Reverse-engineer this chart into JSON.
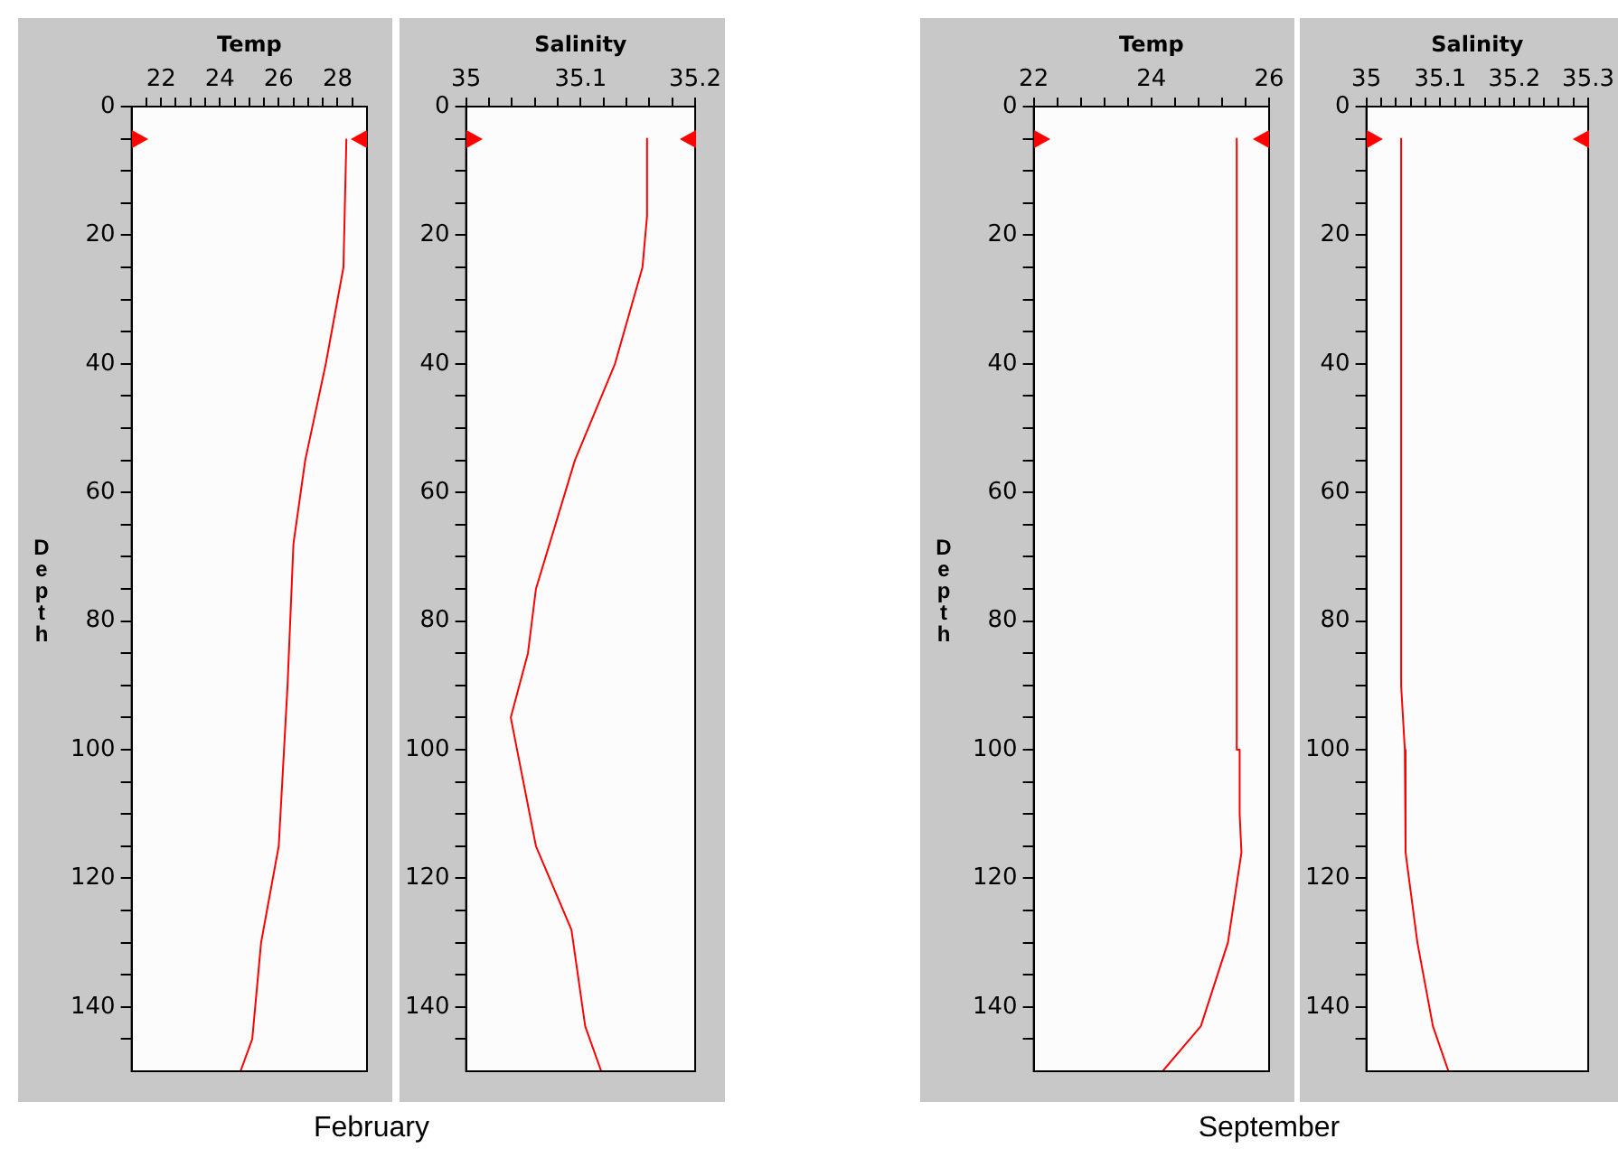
{
  "chart_data": [
    {
      "type": "line",
      "xlabel": "Temp",
      "ylabel": "Depth",
      "color": "#ff0000",
      "annotations": [
        "February"
      ],
      "x": [
        28.3,
        28.2,
        27.6,
        26.9,
        26.5,
        26.3,
        26.0,
        25.4,
        25.1,
        24.7
      ],
      "values": [
        5,
        25,
        40,
        55,
        68,
        90,
        115,
        130,
        145,
        150
      ],
      "xlim": [
        21,
        29
      ],
      "xticks": [
        {
          "value": 21.5,
          "label": null
        },
        22,
        {
          "value": 22.5,
          "label": null
        },
        {
          "value": 23,
          "label": null
        },
        {
          "value": 23.5,
          "label": null
        },
        24,
        {
          "value": 24.5,
          "label": null
        },
        {
          "value": 25,
          "label": null
        },
        {
          "value": 25.5,
          "label": null
        },
        26,
        {
          "value": 26.5,
          "label": null
        },
        {
          "value": 27,
          "label": null
        },
        {
          "value": 27.5,
          "label": null
        },
        28,
        {
          "value": 28.5,
          "label": null
        }
      ],
      "ylim": [
        150,
        0
      ],
      "yticks": [
        0,
        {
          "value": 5,
          "label": null
        },
        {
          "value": 10,
          "label": null
        },
        {
          "value": 15,
          "label": null
        },
        20,
        {
          "value": 25,
          "label": null
        },
        {
          "value": 30,
          "label": null
        },
        {
          "value": 35,
          "label": null
        },
        40,
        {
          "value": 45,
          "label": null
        },
        {
          "value": 50,
          "label": null
        },
        {
          "value": 55,
          "label": null
        },
        60,
        {
          "value": 65,
          "label": null
        },
        {
          "value": 70,
          "label": null
        },
        {
          "value": 75,
          "label": null
        },
        80,
        {
          "value": 85,
          "label": null
        },
        {
          "value": 90,
          "label": null
        },
        {
          "value": 95,
          "label": null
        },
        100,
        {
          "value": 105,
          "label": null
        },
        {
          "value": 110,
          "label": null
        },
        {
          "value": 115,
          "label": null
        },
        120,
        {
          "value": 125,
          "label": null
        },
        {
          "value": 130,
          "label": null
        },
        {
          "value": 135,
          "label": null
        },
        140,
        {
          "value": 145,
          "label": null
        }
      ]
    },
    {
      "type": "line",
      "xlabel": "Salinity",
      "color": "#ff0000",
      "x": [
        35.158,
        35.158,
        35.154,
        35.13,
        35.095,
        35.061,
        35.054,
        35.039,
        35.061,
        35.092,
        35.104,
        35.118
      ],
      "values": [
        5,
        17,
        25,
        40,
        55,
        75,
        85,
        95,
        115,
        128,
        143,
        150
      ],
      "xlim": [
        35,
        35.2
      ],
      "xticks": [
        35,
        {
          "value": 35.02,
          "label": null
        },
        {
          "value": 35.04,
          "label": null
        },
        {
          "value": 35.06,
          "label": null
        },
        {
          "value": 35.08,
          "label": null
        },
        35.1,
        {
          "value": 35.12,
          "label": null
        },
        {
          "value": 35.14,
          "label": null
        },
        {
          "value": 35.16,
          "label": null
        },
        {
          "value": 35.18,
          "label": null
        },
        35.2
      ],
      "ylim": [
        150,
        0
      ],
      "yticks": [
        0,
        {
          "value": 5,
          "label": null
        },
        {
          "value": 10,
          "label": null
        },
        {
          "value": 15,
          "label": null
        },
        20,
        {
          "value": 25,
          "label": null
        },
        {
          "value": 30,
          "label": null
        },
        {
          "value": 35,
          "label": null
        },
        40,
        {
          "value": 45,
          "label": null
        },
        {
          "value": 50,
          "label": null
        },
        {
          "value": 55,
          "label": null
        },
        60,
        {
          "value": 65,
          "label": null
        },
        {
          "value": 70,
          "label": null
        },
        {
          "value": 75,
          "label": null
        },
        80,
        {
          "value": 85,
          "label": null
        },
        {
          "value": 90,
          "label": null
        },
        {
          "value": 95,
          "label": null
        },
        100,
        {
          "value": 105,
          "label": null
        },
        {
          "value": 110,
          "label": null
        },
        {
          "value": 115,
          "label": null
        },
        120,
        {
          "value": 125,
          "label": null
        },
        {
          "value": 130,
          "label": null
        },
        {
          "value": 135,
          "label": null
        },
        140,
        {
          "value": 145,
          "label": null
        }
      ]
    },
    {
      "type": "line",
      "xlabel": "Temp",
      "ylabel": "Depth",
      "color": "#ff0000",
      "annotations": [
        "September"
      ],
      "x": [
        25.45,
        25.45,
        25.5,
        25.5,
        25.53,
        25.3,
        24.84,
        24.19
      ],
      "values": [
        5,
        100,
        100,
        110,
        116,
        130,
        143,
        150
      ],
      "xlim": [
        22,
        26
      ],
      "xticks": [
        22,
        {
          "value": 22.4,
          "label": null
        },
        {
          "value": 22.8,
          "label": null
        },
        {
          "value": 23.2,
          "label": null
        },
        {
          "value": 23.6,
          "label": null
        },
        24,
        {
          "value": 24.4,
          "label": null
        },
        {
          "value": 24.8,
          "label": null
        },
        {
          "value": 25.2,
          "label": null
        },
        {
          "value": 25.6,
          "label": null
        },
        26
      ],
      "ylim": [
        150,
        0
      ],
      "yticks": [
        0,
        {
          "value": 5,
          "label": null
        },
        {
          "value": 10,
          "label": null
        },
        {
          "value": 15,
          "label": null
        },
        20,
        {
          "value": 25,
          "label": null
        },
        {
          "value": 30,
          "label": null
        },
        {
          "value": 35,
          "label": null
        },
        40,
        {
          "value": 45,
          "label": null
        },
        {
          "value": 50,
          "label": null
        },
        {
          "value": 55,
          "label": null
        },
        60,
        {
          "value": 65,
          "label": null
        },
        {
          "value": 70,
          "label": null
        },
        {
          "value": 75,
          "label": null
        },
        80,
        {
          "value": 85,
          "label": null
        },
        {
          "value": 90,
          "label": null
        },
        {
          "value": 95,
          "label": null
        },
        100,
        {
          "value": 105,
          "label": null
        },
        {
          "value": 110,
          "label": null
        },
        {
          "value": 115,
          "label": null
        },
        120,
        {
          "value": 125,
          "label": null
        },
        {
          "value": 130,
          "label": null
        },
        {
          "value": 135,
          "label": null
        },
        140,
        {
          "value": 145,
          "label": null
        }
      ]
    },
    {
      "type": "line",
      "xlabel": "Salinity",
      "color": "#ff0000",
      "x": [
        35.047,
        35.047,
        35.052,
        35.053,
        35.069,
        35.09,
        35.111
      ],
      "values": [
        5,
        90,
        100,
        116,
        130,
        143,
        150
      ],
      "xlim": [
        35,
        35.3
      ],
      "xticks": [
        35,
        {
          "value": 35.02,
          "label": null
        },
        {
          "value": 35.04,
          "label": null
        },
        {
          "value": 35.06,
          "label": null
        },
        {
          "value": 35.08,
          "label": null
        },
        35.1,
        {
          "value": 35.12,
          "label": null
        },
        {
          "value": 35.14,
          "label": null
        },
        {
          "value": 35.16,
          "label": null
        },
        {
          "value": 35.18,
          "label": null
        },
        35.2,
        {
          "value": 35.22,
          "label": null
        },
        {
          "value": 35.24,
          "label": null
        },
        {
          "value": 35.26,
          "label": null
        },
        {
          "value": 35.28,
          "label": null
        },
        35.3
      ],
      "ylim": [
        150,
        0
      ],
      "yticks": [
        0,
        {
          "value": 5,
          "label": null
        },
        {
          "value": 10,
          "label": null
        },
        {
          "value": 15,
          "label": null
        },
        20,
        {
          "value": 25,
          "label": null
        },
        {
          "value": 30,
          "label": null
        },
        {
          "value": 35,
          "label": null
        },
        40,
        {
          "value": 45,
          "label": null
        },
        {
          "value": 50,
          "label": null
        },
        {
          "value": 55,
          "label": null
        },
        60,
        {
          "value": 65,
          "label": null
        },
        {
          "value": 70,
          "label": null
        },
        {
          "value": 75,
          "label": null
        },
        80,
        {
          "value": 85,
          "label": null
        },
        {
          "value": 90,
          "label": null
        },
        {
          "value": 95,
          "label": null
        },
        100,
        {
          "value": 105,
          "label": null
        },
        {
          "value": 110,
          "label": null
        },
        {
          "value": 115,
          "label": null
        },
        120,
        {
          "value": 125,
          "label": null
        },
        {
          "value": 130,
          "label": null
        },
        {
          "value": 135,
          "label": null
        },
        140,
        {
          "value": 145,
          "label": null
        }
      ]
    }
  ]
}
